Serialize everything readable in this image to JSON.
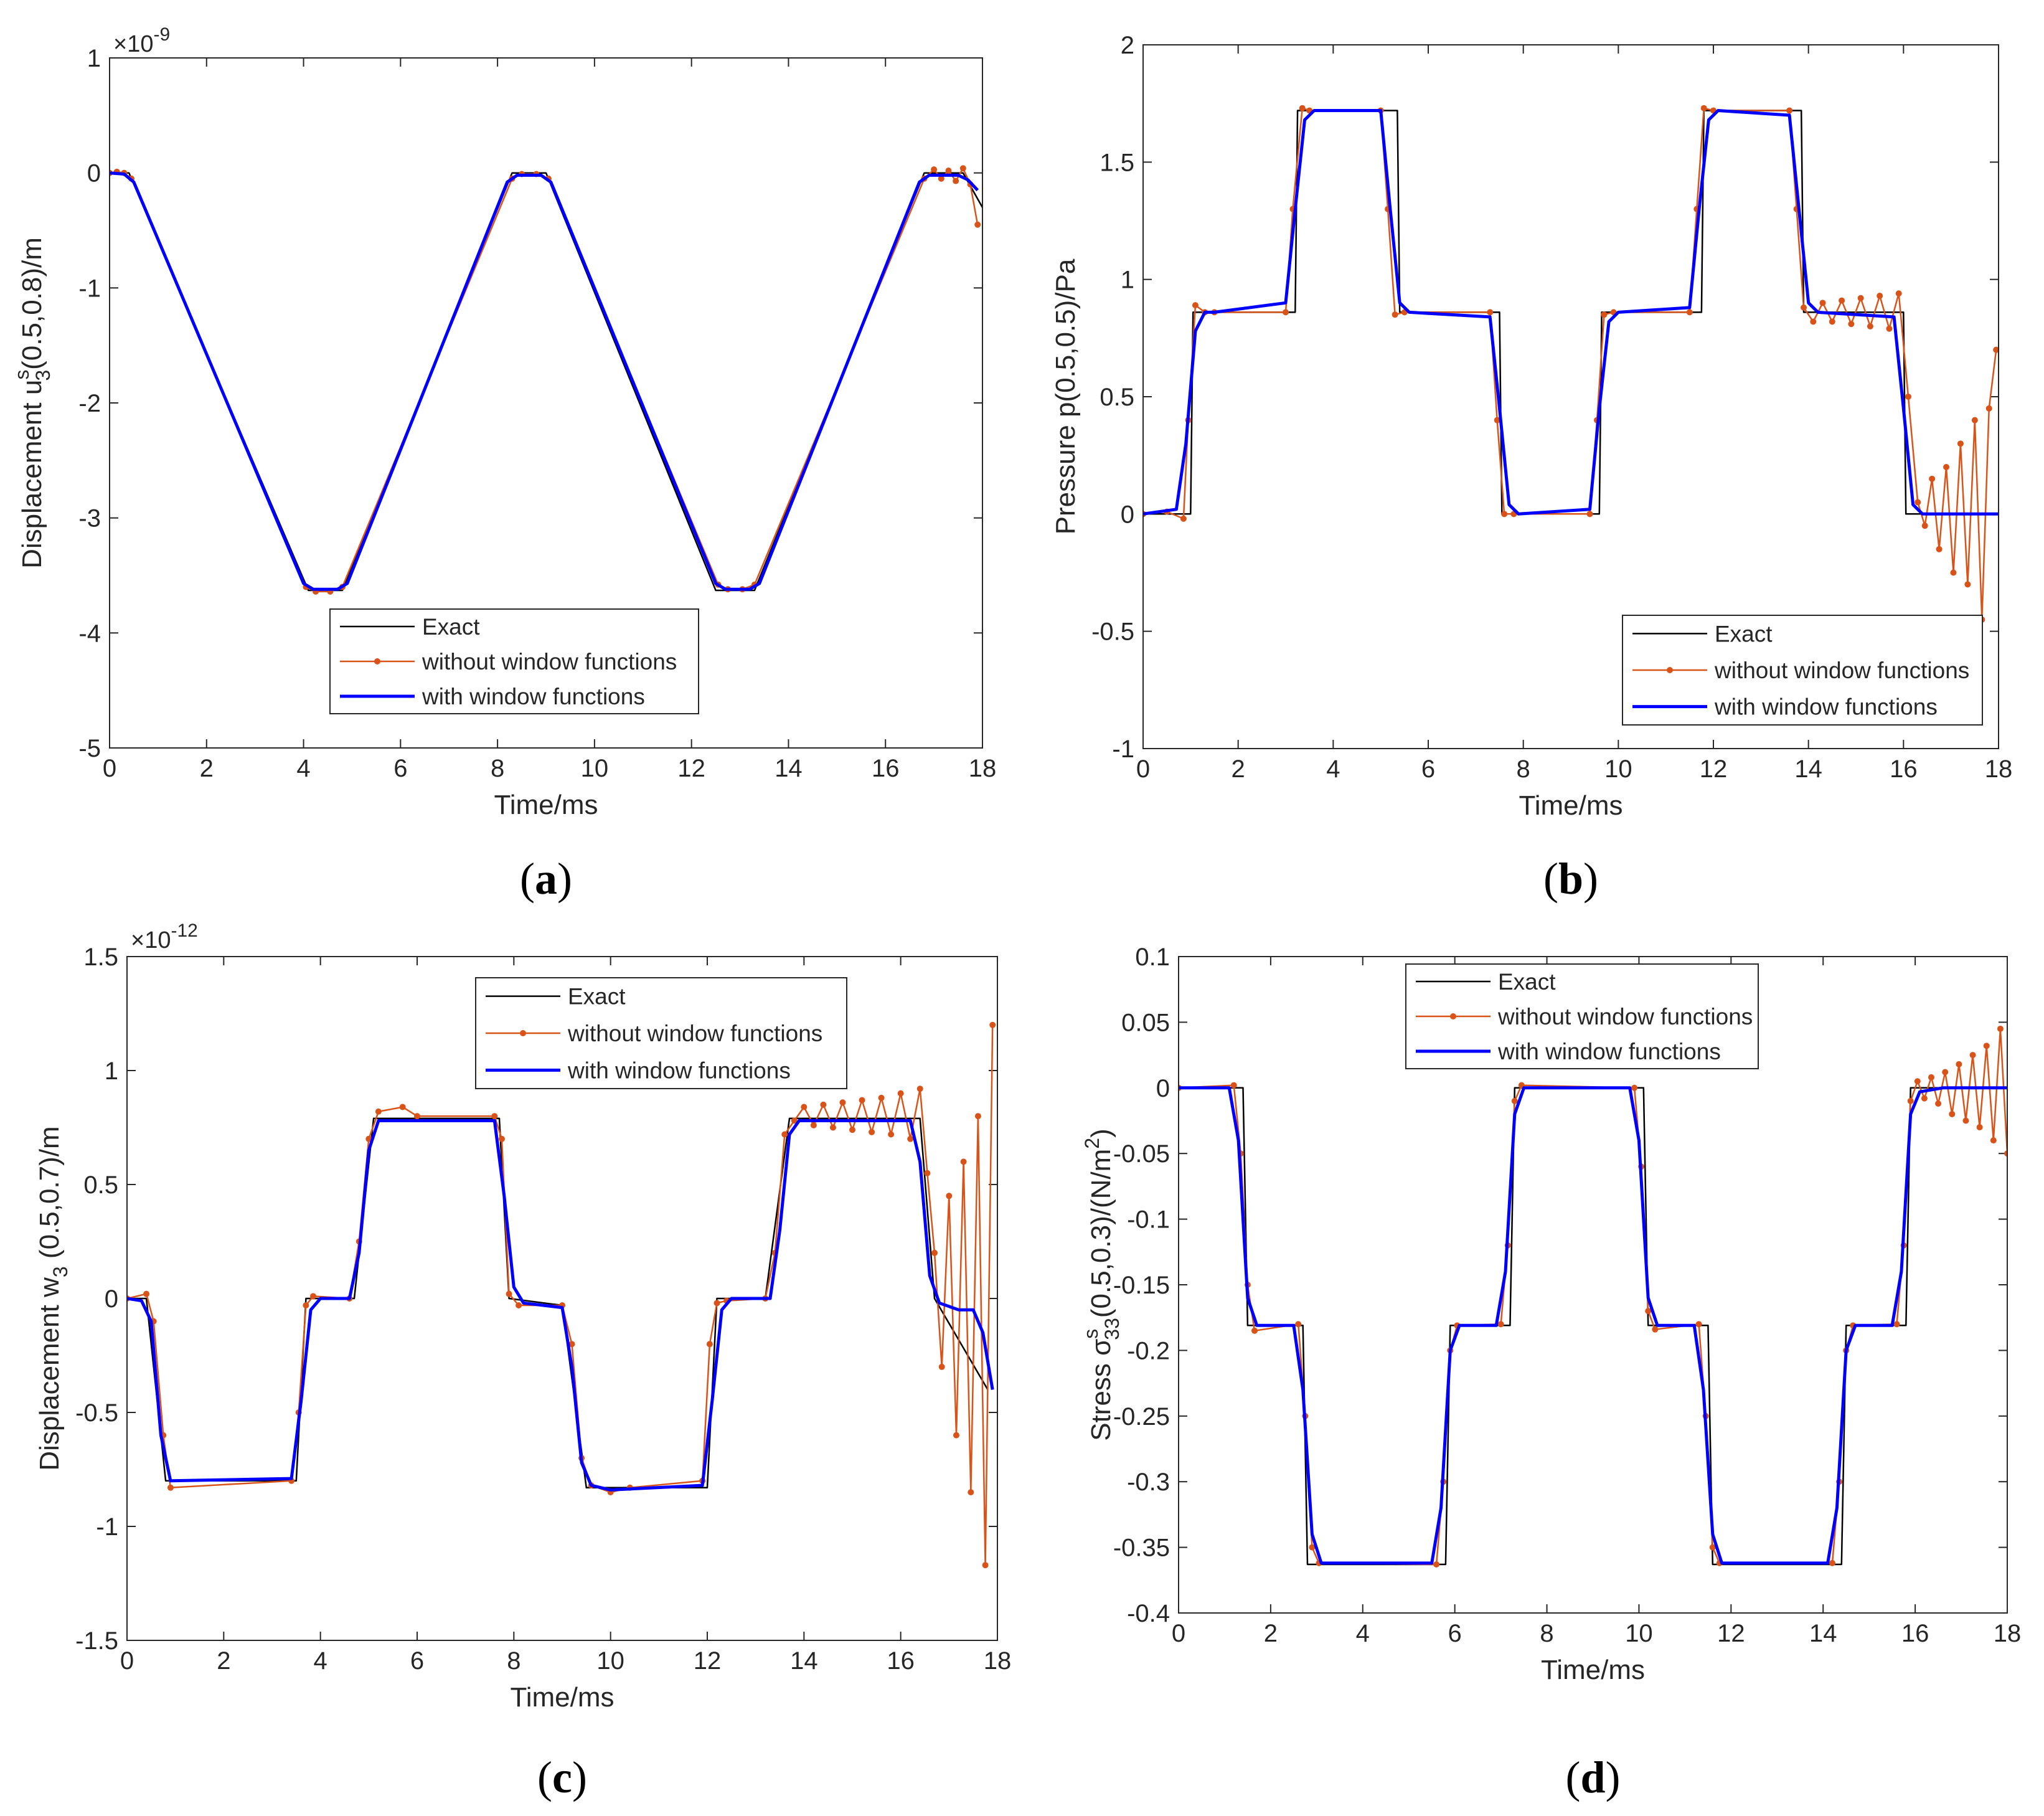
{
  "figure": {
    "panels": [
      "a",
      "b",
      "c",
      "d"
    ]
  },
  "chart_data": [
    {
      "id": "a",
      "type": "line",
      "panel_label": "(a)",
      "panel_letter": "a",
      "xlabel": "Time/ms",
      "ylabel": "Displacement u",
      "ylabel_sub": "3",
      "ylabel_sup": "s",
      "ylabel_tail": "(0.5,0.8)/m",
      "exponent_label": "×10",
      "exponent": "-9",
      "xlim": [
        0,
        18
      ],
      "ylim": [
        -5,
        1
      ],
      "xticks": [
        "0",
        "2",
        "4",
        "6",
        "8",
        "10",
        "12",
        "14",
        "16",
        "18"
      ],
      "yticks": [
        "-5",
        "-4",
        "-3",
        "-2",
        "-1",
        "0",
        "1"
      ],
      "legend": [
        "Exact",
        "without window functions",
        "with window functions"
      ],
      "legend_position": "bottom-center",
      "series": [
        {
          "name": "Exact",
          "color": "#000000",
          "x": [
            0,
            0.4,
            4.1,
            4.8,
            8.3,
            9.0,
            12.5,
            13.3,
            16.8,
            17.6,
            18
          ],
          "y": [
            0,
            0,
            -3.63,
            -3.63,
            0,
            0,
            -3.63,
            -3.63,
            0,
            0,
            -0.3
          ]
        },
        {
          "name": "without window functions",
          "color": "#D95319",
          "x": [
            0,
            0.15,
            0.3,
            0.45,
            4.05,
            4.25,
            4.55,
            4.8,
            8.3,
            8.5,
            8.8,
            9.05,
            12.55,
            12.75,
            13.05,
            13.3,
            16.8,
            17.0,
            17.15,
            17.3,
            17.45,
            17.6,
            17.75,
            17.9
          ],
          "y": [
            0,
            0.01,
            0.0,
            -0.05,
            -3.6,
            -3.64,
            -3.64,
            -3.6,
            -0.05,
            -0.01,
            -0.01,
            -0.05,
            -3.58,
            -3.62,
            -3.62,
            -3.58,
            -0.05,
            0.03,
            -0.05,
            0.02,
            -0.07,
            0.04,
            -0.1,
            -0.45
          ]
        },
        {
          "name": "with window functions",
          "color": "#0000FF",
          "x": [
            0,
            0.3,
            0.5,
            4.0,
            4.2,
            4.7,
            4.9,
            8.2,
            8.4,
            8.9,
            9.1,
            12.5,
            12.7,
            13.2,
            13.4,
            16.7,
            16.9,
            17.5,
            17.7,
            17.9
          ],
          "y": [
            0,
            -0.01,
            -0.08,
            -3.57,
            -3.62,
            -3.62,
            -3.57,
            -0.08,
            -0.02,
            -0.02,
            -0.08,
            -3.57,
            -3.62,
            -3.62,
            -3.57,
            -0.08,
            -0.02,
            -0.02,
            -0.06,
            -0.15
          ]
        }
      ]
    },
    {
      "id": "b",
      "type": "line",
      "panel_label": "(b)",
      "panel_letter": "b",
      "xlabel": "Time/ms",
      "ylabel": "Pressure p(0.5,0.5)/Pa",
      "xlim": [
        0,
        18
      ],
      "ylim": [
        -1,
        2
      ],
      "xticks": [
        "0",
        "2",
        "4",
        "6",
        "8",
        "10",
        "12",
        "14",
        "16",
        "18"
      ],
      "yticks": [
        "-1",
        "-0.5",
        "0",
        "0.5",
        "1",
        "1.5",
        "2"
      ],
      "legend": [
        "Exact",
        "without window functions",
        "with window functions"
      ],
      "legend_position": "bottom-right",
      "series": [
        {
          "name": "Exact",
          "color": "#000000",
          "x": [
            0,
            1.0,
            1.05,
            3.2,
            3.25,
            5.35,
            5.4,
            7.5,
            7.55,
            9.6,
            9.65,
            11.75,
            11.8,
            13.85,
            13.9,
            16.0,
            16.05,
            18
          ],
          "y": [
            0,
            0,
            0.86,
            0.86,
            1.72,
            1.72,
            0.86,
            0.86,
            0,
            0,
            0.86,
            0.86,
            1.72,
            1.72,
            0.86,
            0.86,
            0,
            0
          ]
        },
        {
          "name": "without window functions",
          "color": "#D95319",
          "x": [
            0,
            0.5,
            0.85,
            0.95,
            1.1,
            1.3,
            1.5,
            3.0,
            3.15,
            3.35,
            3.5,
            5.0,
            5.15,
            5.3,
            5.5,
            7.3,
            7.45,
            7.6,
            7.8,
            9.4,
            9.55,
            9.7,
            9.9,
            11.5,
            11.65,
            11.8,
            12.0,
            13.6,
            13.75,
            13.9,
            14.1,
            14.3,
            14.5,
            14.7,
            14.9,
            15.1,
            15.3,
            15.5,
            15.7,
            15.9,
            16.1,
            16.3,
            16.45,
            16.6,
            16.75,
            16.9,
            17.05,
            17.2,
            17.35,
            17.5,
            17.65,
            17.8,
            17.95
          ],
          "y": [
            0,
            0.01,
            -0.02,
            0.4,
            0.89,
            0.86,
            0.86,
            0.86,
            1.3,
            1.73,
            1.72,
            1.72,
            1.3,
            0.85,
            0.86,
            0.86,
            0.4,
            0.0,
            0.0,
            0.0,
            0.4,
            0.85,
            0.86,
            0.86,
            1.3,
            1.73,
            1.72,
            1.72,
            1.3,
            0.88,
            0.82,
            0.9,
            0.82,
            0.91,
            0.81,
            0.92,
            0.8,
            0.93,
            0.79,
            0.94,
            0.5,
            0.05,
            -0.05,
            0.15,
            -0.15,
            0.2,
            -0.25,
            0.3,
            -0.3,
            0.4,
            -0.45,
            0.45,
            0.7
          ]
        },
        {
          "name": "with window functions",
          "color": "#0000FF",
          "x": [
            0,
            0.7,
            0.9,
            1.1,
            1.3,
            1.5,
            3.0,
            3.2,
            3.4,
            3.6,
            5.0,
            5.2,
            5.4,
            5.6,
            7.3,
            7.5,
            7.7,
            7.9,
            9.4,
            9.6,
            9.8,
            10.0,
            11.5,
            11.7,
            11.9,
            12.1,
            13.6,
            13.8,
            14.0,
            14.2,
            15.8,
            16.0,
            16.2,
            16.4,
            18
          ],
          "y": [
            0,
            0.02,
            0.3,
            0.78,
            0.86,
            0.86,
            0.9,
            1.3,
            1.68,
            1.72,
            1.72,
            1.3,
            0.9,
            0.86,
            0.84,
            0.45,
            0.04,
            0.0,
            0.02,
            0.45,
            0.82,
            0.86,
            0.88,
            1.3,
            1.68,
            1.72,
            1.7,
            1.3,
            0.9,
            0.86,
            0.84,
            0.45,
            0.04,
            0.0,
            0.0
          ]
        }
      ]
    },
    {
      "id": "c",
      "type": "line",
      "panel_label": "(c)",
      "panel_letter": "c",
      "xlabel": "Time/ms",
      "ylabel": "Displacement w",
      "ylabel_sub": "3",
      "ylabel_tail": " (0.5,0.7)/m",
      "exponent_label": "×10",
      "exponent": "-12",
      "xlim": [
        0,
        18
      ],
      "ylim": [
        -1.5,
        1.5
      ],
      "xticks": [
        "0",
        "2",
        "4",
        "6",
        "8",
        "10",
        "12",
        "14",
        "16",
        "18"
      ],
      "yticks": [
        "-1.5",
        "-1",
        "-0.5",
        "0",
        "0.5",
        "1",
        "1.5"
      ],
      "legend": [
        "Exact",
        "without window functions",
        "with window functions"
      ],
      "legend_position": "top-center",
      "series": [
        {
          "name": "Exact",
          "color": "#000000",
          "x": [
            0,
            0.4,
            0.8,
            3.5,
            3.7,
            4.7,
            5.1,
            7.7,
            7.9,
            9.0,
            9.5,
            12.0,
            12.2,
            13.2,
            13.7,
            16.4,
            16.7,
            17.8
          ],
          "y": [
            0,
            0,
            -0.8,
            -0.8,
            0,
            0,
            0.79,
            0.79,
            0,
            -0.03,
            -0.83,
            -0.83,
            0,
            0,
            0.79,
            0.79,
            0,
            -0.4
          ]
        },
        {
          "name": "without window functions",
          "color": "#D95319",
          "x": [
            0,
            0.4,
            0.55,
            0.75,
            0.9,
            3.4,
            3.55,
            3.7,
            3.85,
            4.6,
            4.8,
            5.0,
            5.2,
            5.7,
            6.0,
            7.6,
            7.75,
            7.9,
            8.1,
            9.0,
            9.2,
            9.4,
            9.6,
            10.0,
            10.4,
            11.9,
            12.05,
            12.2,
            12.4,
            13.2,
            13.4,
            13.6,
            13.8,
            14.0,
            14.2,
            14.4,
            14.6,
            14.8,
            15.0,
            15.2,
            15.4,
            15.6,
            15.8,
            16.0,
            16.2,
            16.4,
            16.55,
            16.7,
            16.85,
            17.0,
            17.15,
            17.3,
            17.45,
            17.6,
            17.75,
            17.9
          ],
          "y": [
            0,
            0.02,
            -0.1,
            -0.6,
            -0.83,
            -0.8,
            -0.5,
            -0.03,
            0.01,
            0,
            0.25,
            0.7,
            0.82,
            0.84,
            0.8,
            0.8,
            0.7,
            0.02,
            -0.03,
            -0.03,
            -0.2,
            -0.7,
            -0.82,
            -0.85,
            -0.83,
            -0.8,
            -0.2,
            -0.02,
            -0.01,
            0,
            0.2,
            0.72,
            0.78,
            0.84,
            0.76,
            0.85,
            0.75,
            0.86,
            0.74,
            0.87,
            0.73,
            0.88,
            0.72,
            0.9,
            0.7,
            0.92,
            0.55,
            0.2,
            -0.3,
            0.45,
            -0.6,
            0.6,
            -0.85,
            0.8,
            -1.17,
            1.2
          ]
        },
        {
          "name": "with window functions",
          "color": "#0000FF",
          "x": [
            0,
            0.3,
            0.5,
            0.7,
            0.9,
            3.4,
            3.6,
            3.8,
            4.0,
            4.6,
            4.8,
            5.0,
            5.2,
            7.6,
            7.8,
            8.0,
            8.2,
            9.0,
            9.2,
            9.4,
            9.6,
            10.0,
            11.9,
            12.1,
            12.3,
            12.5,
            13.3,
            13.5,
            13.7,
            13.9,
            16.2,
            16.4,
            16.6,
            16.8,
            17.2,
            17.5,
            17.7,
            17.9
          ],
          "y": [
            0,
            -0.01,
            -0.1,
            -0.6,
            -0.8,
            -0.79,
            -0.45,
            -0.05,
            0.0,
            0.0,
            0.2,
            0.65,
            0.78,
            0.78,
            0.45,
            0.05,
            -0.02,
            -0.04,
            -0.3,
            -0.72,
            -0.82,
            -0.84,
            -0.82,
            -0.45,
            -0.05,
            0.0,
            0.0,
            0.3,
            0.72,
            0.78,
            0.78,
            0.6,
            0.1,
            -0.02,
            -0.05,
            -0.05,
            -0.15,
            -0.4
          ]
        }
      ]
    },
    {
      "id": "d",
      "type": "line",
      "panel_label": "(d)",
      "panel_letter": "d",
      "xlabel": "Time/ms",
      "ylabel": "Stress σ",
      "ylabel_sub": "33",
      "ylabel_sup": "s",
      "ylabel_tail": "(0.5,0.3)/(N/m",
      "ylabel_tail_sup": "2",
      "ylabel_end": ")",
      "xlim": [
        0,
        18
      ],
      "ylim": [
        -0.4,
        0.1
      ],
      "xticks": [
        "0",
        "2",
        "4",
        "6",
        "8",
        "10",
        "12",
        "14",
        "16",
        "18"
      ],
      "yticks": [
        "-0.4",
        "-0.35",
        "-0.3",
        "-0.25",
        "-0.2",
        "-0.15",
        "-0.1",
        "-0.05",
        "0",
        "0.05",
        "0.1"
      ],
      "legend": [
        "Exact",
        "without window functions",
        "with window functions"
      ],
      "legend_position": "top-center",
      "series": [
        {
          "name": "Exact",
          "color": "#000000",
          "x": [
            0,
            1.4,
            1.5,
            2.7,
            2.8,
            5.8,
            5.9,
            7.2,
            7.3,
            10.1,
            10.2,
            11.5,
            11.6,
            14.4,
            14.5,
            15.8,
            15.9,
            18
          ],
          "y": [
            0,
            0,
            -0.181,
            -0.181,
            -0.363,
            -0.363,
            -0.181,
            -0.181,
            0,
            0,
            -0.181,
            -0.181,
            -0.363,
            -0.363,
            -0.181,
            -0.181,
            0,
            0
          ]
        },
        {
          "name": "without window functions",
          "color": "#D95319",
          "x": [
            0,
            1.2,
            1.35,
            1.5,
            1.65,
            2.6,
            2.75,
            2.9,
            3.05,
            5.6,
            5.75,
            5.9,
            6.05,
            7.0,
            7.15,
            7.3,
            7.45,
            9.9,
            10.05,
            10.2,
            10.35,
            11.3,
            11.45,
            11.6,
            11.75,
            14.2,
            14.35,
            14.5,
            14.65,
            15.6,
            15.75,
            15.9,
            16.05,
            16.2,
            16.35,
            16.5,
            16.65,
            16.8,
            16.95,
            17.1,
            17.25,
            17.4,
            17.55,
            17.7,
            17.85,
            18
          ],
          "y": [
            0,
            0.002,
            -0.05,
            -0.15,
            -0.185,
            -0.18,
            -0.25,
            -0.35,
            -0.362,
            -0.363,
            -0.3,
            -0.2,
            -0.181,
            -0.18,
            -0.12,
            -0.01,
            0.002,
            0.0,
            -0.06,
            -0.17,
            -0.184,
            -0.18,
            -0.25,
            -0.35,
            -0.362,
            -0.362,
            -0.3,
            -0.2,
            -0.181,
            -0.18,
            -0.12,
            -0.01,
            0.005,
            -0.008,
            0.008,
            -0.012,
            0.012,
            -0.02,
            0.018,
            -0.025,
            0.025,
            -0.03,
            0.032,
            -0.04,
            0.045,
            -0.05
          ]
        },
        {
          "name": "with window functions",
          "color": "#0000FF",
          "x": [
            0,
            1.1,
            1.3,
            1.5,
            1.7,
            2.5,
            2.7,
            2.9,
            3.1,
            5.5,
            5.7,
            5.9,
            6.1,
            6.9,
            7.1,
            7.3,
            7.5,
            9.8,
            10.0,
            10.2,
            10.4,
            11.2,
            11.4,
            11.6,
            11.8,
            14.1,
            14.3,
            14.5,
            14.7,
            15.5,
            15.7,
            15.9,
            16.1,
            16.6,
            18
          ],
          "y": [
            0,
            0,
            -0.04,
            -0.16,
            -0.181,
            -0.181,
            -0.23,
            -0.34,
            -0.362,
            -0.362,
            -0.32,
            -0.2,
            -0.181,
            -0.181,
            -0.14,
            -0.02,
            0.0,
            0.0,
            -0.04,
            -0.16,
            -0.181,
            -0.181,
            -0.23,
            -0.34,
            -0.362,
            -0.362,
            -0.32,
            -0.2,
            -0.181,
            -0.181,
            -0.14,
            -0.02,
            -0.003,
            0.0,
            0.0
          ]
        }
      ]
    }
  ]
}
